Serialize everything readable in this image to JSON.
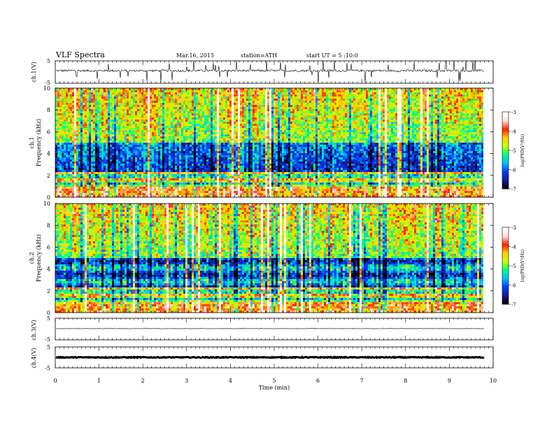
{
  "header": {
    "title": "VLF Spectra",
    "date": "Mar.16, 2015",
    "station": "station=ATH",
    "start_ut": "start UT =  5 :10:0"
  },
  "colors": {
    "spectrum_scale": [
      "#000000",
      "#1a1aa0",
      "#0040ff",
      "#00c0ff",
      "#00ff80",
      "#c8ff00",
      "#ffd000",
      "#ff2000",
      "#ffe0e0",
      "#ffffff"
    ],
    "waveform": "#000000",
    "frame": "#000000"
  },
  "chart_data": [
    {
      "type": "line",
      "name": "ch1-waveform",
      "ylabel": "ch.1(V)",
      "ylim": [
        -5,
        5
      ],
      "yticks": [
        "5",
        "-5"
      ],
      "xlim": [
        0,
        10
      ],
      "baseline_v": 0.6,
      "noise_v": 0.5,
      "data_end_min": 9.8
    },
    {
      "type": "heatmap",
      "name": "ch1-spectrogram",
      "ylabel_top": "ch.1",
      "ylabel": "Frequency (kHz)",
      "ylim": [
        0,
        10
      ],
      "yticks": [
        "0",
        "2",
        "4",
        "6",
        "8",
        "10"
      ],
      "xlim": [
        0,
        10
      ],
      "data_end_min": 9.8,
      "colorbar": {
        "label": "log(PSD(V²/Hz)",
        "range": [
          -7,
          -3
        ],
        "ticks": [
          "-3",
          "-4",
          "-5",
          "-6",
          "-7"
        ]
      }
    },
    {
      "type": "heatmap",
      "name": "ch2-spectrogram",
      "ylabel_top": "ch.2",
      "ylabel": "Frequency (kHz)",
      "ylim": [
        0,
        10
      ],
      "yticks": [
        "0",
        "2",
        "4",
        "6",
        "8",
        "10"
      ],
      "xlim": [
        0,
        10
      ],
      "data_end_min": 9.8,
      "colorbar": {
        "label": "log(PSD(V²/Hz)",
        "range": [
          -7,
          -3
        ],
        "ticks": [
          "-3",
          "-4",
          "-5",
          "-6",
          "-7"
        ]
      }
    },
    {
      "type": "line",
      "name": "ch3-waveform",
      "ylabel": "ch.3(V)",
      "ylim": [
        -5,
        5
      ],
      "yticks": [
        "5",
        "-5"
      ],
      "xlim": [
        0,
        10
      ],
      "baseline_v": 0.2,
      "noise_v": 0.1,
      "data_end_min": 9.8
    },
    {
      "type": "line",
      "name": "ch4-waveform",
      "ylabel": "ch.4(V)",
      "ylim": [
        -5,
        5
      ],
      "yticks": [
        "5",
        "-5"
      ],
      "xlim": [
        0,
        10
      ],
      "baseline_v": 0.0,
      "noise_v": 0.2,
      "data_end_min": 9.8
    }
  ],
  "xaxis": {
    "label": "Time (min)",
    "ticks": [
      "0",
      "1",
      "2",
      "3",
      "4",
      "5",
      "6",
      "7",
      "8",
      "9",
      "10"
    ],
    "range": [
      0,
      10
    ]
  }
}
